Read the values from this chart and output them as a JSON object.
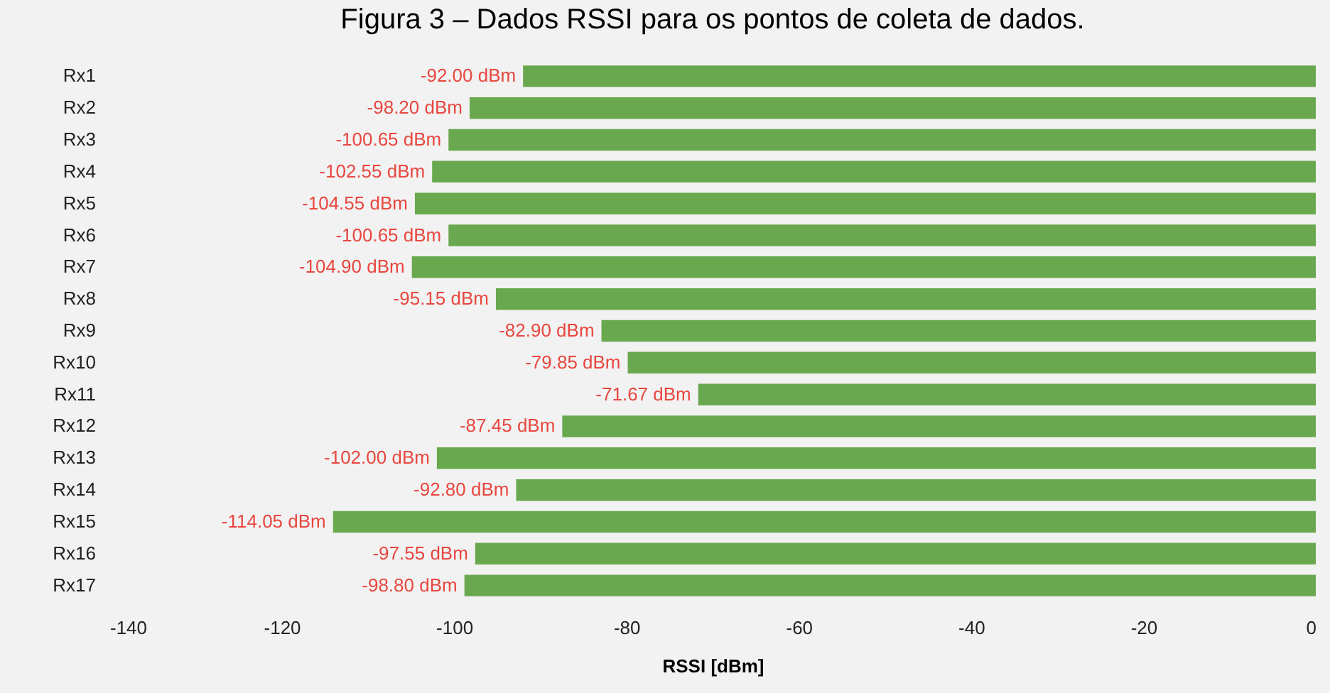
{
  "chart_data": {
    "type": "bar",
    "orientation": "horizontal",
    "title": "Figura 3 – Dados RSSI para os pontos de coleta de dados.",
    "xlabel": "RSSI [dBm]",
    "categories": [
      "Rx1",
      "Rx2",
      "Rx3",
      "Rx4",
      "Rx5",
      "Rx6",
      "Rx7",
      "Rx8",
      "Rx9",
      "Rx10",
      "Rx11",
      "Rx12",
      "Rx13",
      "Rx14",
      "Rx15",
      "Rx16",
      "Rx17"
    ],
    "values": [
      -92.0,
      -98.2,
      -100.65,
      -102.55,
      -104.55,
      -100.65,
      -104.9,
      -95.15,
      -82.9,
      -79.85,
      -71.67,
      -87.45,
      -102.0,
      -92.8,
      -114.05,
      -97.55,
      -98.8
    ],
    "value_labels": [
      "-92.00 dBm",
      "-98.20 dBm",
      "-100.65 dBm",
      "-102.55 dBm",
      "-104.55 dBm",
      "-100.65 dBm",
      "-104.90 dBm",
      "-95.15 dBm",
      "-82.90 dBm",
      "-79.85 dBm",
      "-71.67 dBm",
      "-87.45 dBm",
      "-102.00 dBm",
      "-92.80 dBm",
      "-114.05 dBm",
      "-97.55 dBm",
      "-98.80 dBm"
    ],
    "color": "#6aa84f",
    "xlim": [
      -140,
      0
    ],
    "xticks": [
      -140,
      -120,
      -100,
      -80,
      -60,
      -40,
      -20,
      0
    ],
    "grid": false
  }
}
